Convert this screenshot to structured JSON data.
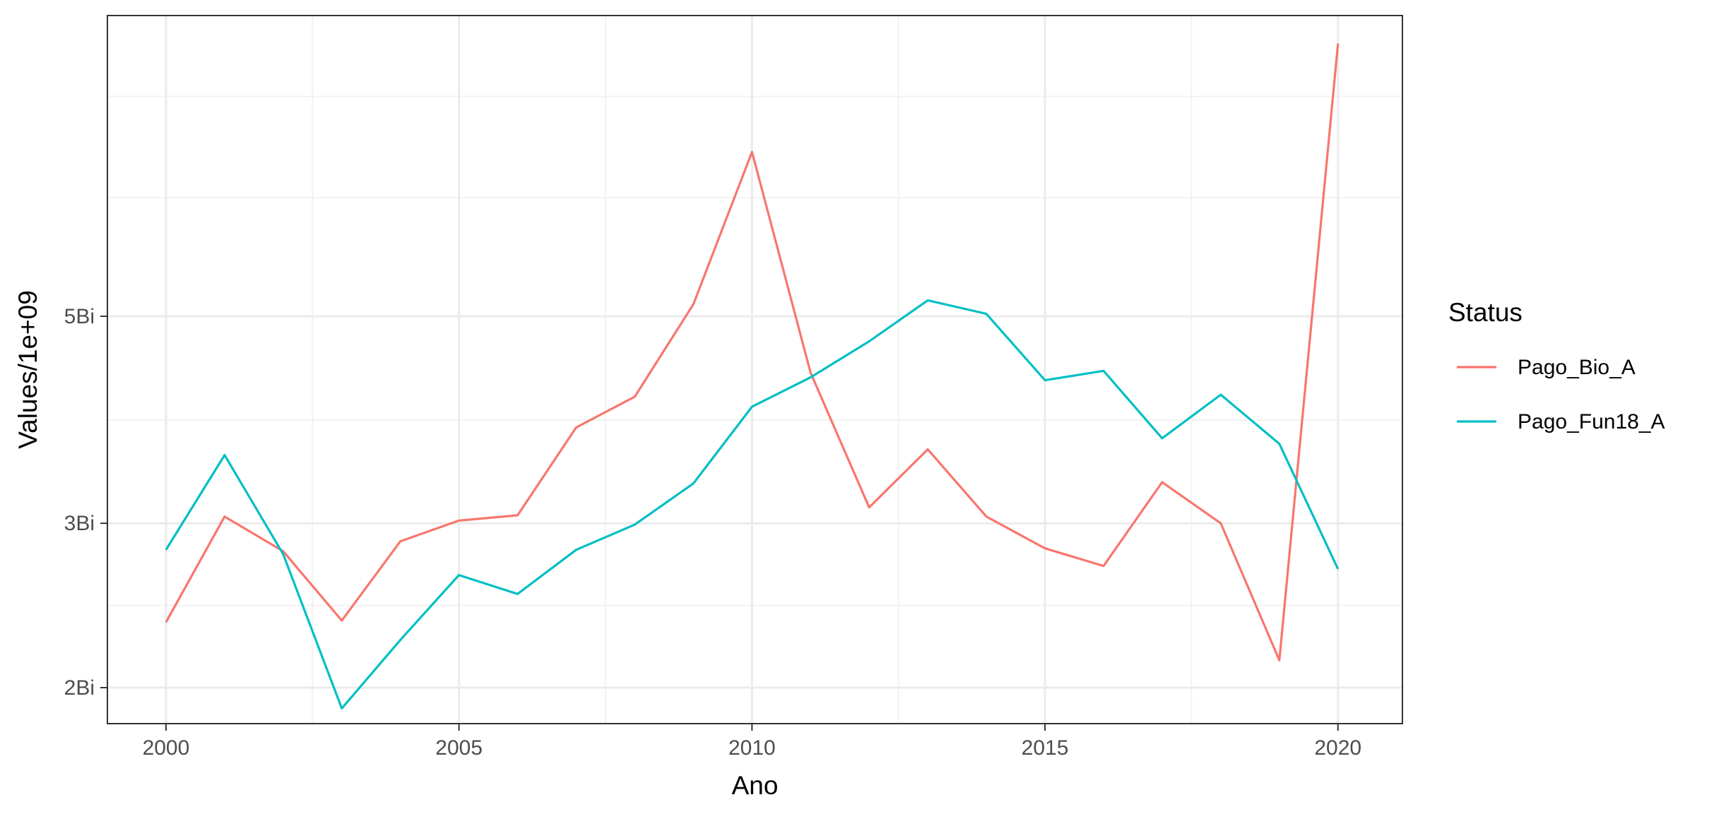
{
  "chart_data": {
    "type": "line",
    "title": "",
    "xlabel": "Ano",
    "ylabel": "Values/1e+09",
    "y_scale": "log",
    "x": [
      2000,
      2001,
      2002,
      2003,
      2004,
      2005,
      2006,
      2007,
      2008,
      2009,
      2010,
      2011,
      2012,
      2013,
      2014,
      2015,
      2016,
      2017,
      2018,
      2019,
      2020
    ],
    "series": [
      {
        "name": "Pago_Bio_A",
        "color": "#F8766D",
        "values": [
          2.35,
          3.05,
          2.8,
          2.36,
          2.87,
          3.02,
          3.06,
          3.8,
          4.1,
          5.15,
          7.5,
          4.35,
          3.12,
          3.6,
          3.05,
          2.82,
          2.7,
          3.32,
          3.0,
          2.14,
          9.8
        ]
      },
      {
        "name": "Pago_Fun18_A",
        "color": "#00BFC4",
        "values": [
          2.81,
          3.55,
          2.78,
          1.9,
          2.25,
          2.64,
          2.52,
          2.81,
          2.99,
          3.31,
          4.0,
          4.3,
          4.7,
          5.2,
          5.03,
          4.27,
          4.37,
          3.7,
          4.12,
          3.65,
          2.68
        ]
      }
    ],
    "xlim": [
      1999,
      2021.1
    ],
    "ylim": [
      1.83,
      10.5
    ],
    "x_ticks": [
      2000,
      2005,
      2010,
      2015,
      2020
    ],
    "x_tick_labels": [
      "2000",
      "2005",
      "2010",
      "2015",
      "2020"
    ],
    "y_ticks": [
      2,
      3,
      5
    ],
    "y_tick_labels": [
      "2Bi",
      "3Bi",
      "5Bi"
    ],
    "legend": {
      "title": "Status",
      "position": "right"
    },
    "grid": true
  }
}
